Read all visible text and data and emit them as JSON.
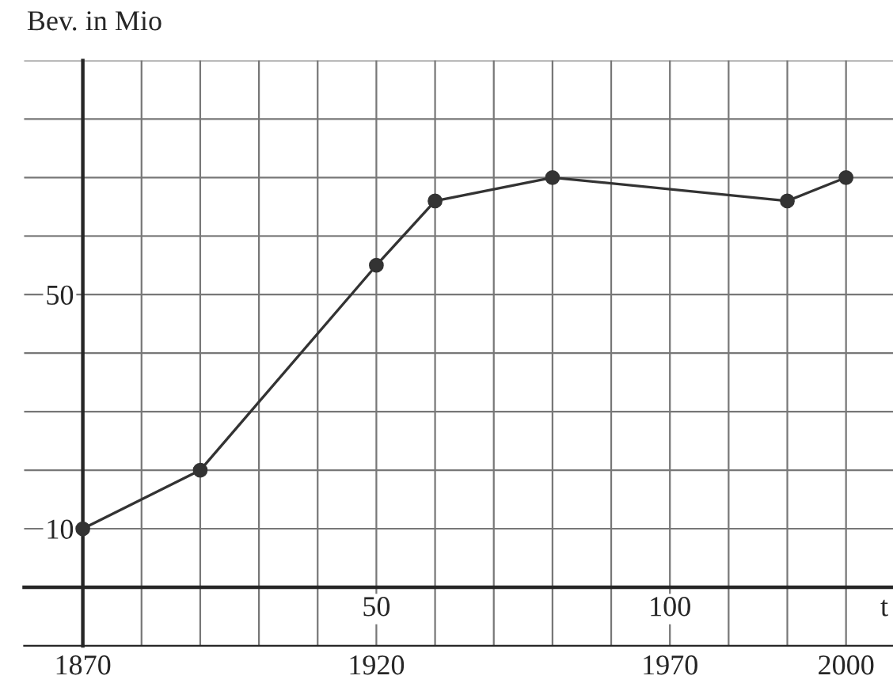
{
  "chart_data": {
    "type": "line",
    "ylabel": "Bev. in Mio",
    "x2label": "t",
    "x": [
      1870,
      1890,
      1920,
      1930,
      1950,
      1990,
      2000
    ],
    "series": [
      {
        "color": "#333333",
        "values": [
          10,
          20,
          55,
          66,
          70,
          66,
          70
        ]
      }
    ],
    "marker": "circle",
    "line_style": "solid",
    "grid": true,
    "xlim": [
      1860,
      2008
    ],
    "xticks": [
      1870,
      {
        "value": 1880,
        "label": null
      },
      {
        "value": 1890,
        "label": null
      },
      {
        "value": 1900,
        "label": null
      },
      {
        "value": 1910,
        "label": null
      },
      1920,
      {
        "value": 1930,
        "label": null
      },
      {
        "value": 1940,
        "label": null
      },
      {
        "value": 1950,
        "label": null
      },
      {
        "value": 1960,
        "label": null
      },
      1970,
      {
        "value": 1980,
        "label": null
      },
      {
        "value": 1990,
        "label": null
      },
      2000
    ],
    "x2lim": [
      -10,
      138
    ],
    "x2ticks": [
      50,
      100
    ],
    "ylim": [
      -10,
      90
    ],
    "yticks": [
      {
        "value": 0,
        "label": null
      },
      10,
      {
        "value": 20,
        "label": null
      },
      {
        "value": 30,
        "label": null
      },
      {
        "value": 40,
        "label": null
      },
      50,
      {
        "value": 60,
        "label": null
      },
      {
        "value": 70,
        "label": null
      },
      {
        "value": 80,
        "label": null
      },
      {
        "value": 90,
        "label": null
      }
    ]
  }
}
